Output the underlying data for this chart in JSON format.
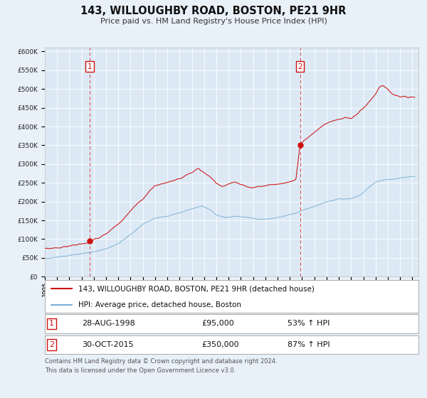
{
  "title": "143, WILLOUGHBY ROAD, BOSTON, PE21 9HR",
  "subtitle": "Price paid vs. HM Land Registry's House Price Index (HPI)",
  "bg_color": "#e8f0f8",
  "plot_bg_color": "#dce9f5",
  "hpi_color": "#7bafd4",
  "price_color": "#cc1111",
  "marker_color": "#cc1111",
  "grid_color": "#ffffff",
  "xmin": 1995.0,
  "xmax": 2025.5,
  "ymin": 0,
  "ymax": 610000,
  "yticks": [
    0,
    50000,
    100000,
    150000,
    200000,
    250000,
    300000,
    350000,
    400000,
    450000,
    500000,
    550000,
    600000
  ],
  "sale1_x": 1998.65,
  "sale1_y": 95000,
  "sale2_x": 2015.83,
  "sale2_y": 350000,
  "legend_line1": "143, WILLOUGHBY ROAD, BOSTON, PE21 9HR (detached house)",
  "legend_line2": "HPI: Average price, detached house, Boston",
  "sale1_date": "28-AUG-1998",
  "sale1_price": "£95,000",
  "sale1_hpi": "53% ↑ HPI",
  "sale2_date": "30-OCT-2015",
  "sale2_price": "£350,000",
  "sale2_hpi": "87% ↑ HPI",
  "footer1": "Contains HM Land Registry data © Crown copyright and database right 2024.",
  "footer2": "This data is licensed under the Open Government Licence v3.0.",
  "hpi_anchors": [
    [
      1995.0,
      47000
    ],
    [
      1996.0,
      52000
    ],
    [
      1997.0,
      56000
    ],
    [
      1998.0,
      60000
    ],
    [
      1999.0,
      65000
    ],
    [
      2000.0,
      72000
    ],
    [
      2001.0,
      86000
    ],
    [
      2002.0,
      110000
    ],
    [
      2003.0,
      138000
    ],
    [
      2004.0,
      155000
    ],
    [
      2005.0,
      160000
    ],
    [
      2006.0,
      168000
    ],
    [
      2007.0,
      178000
    ],
    [
      2007.8,
      185000
    ],
    [
      2008.5,
      175000
    ],
    [
      2009.0,
      162000
    ],
    [
      2009.8,
      155000
    ],
    [
      2010.5,
      158000
    ],
    [
      2011.5,
      155000
    ],
    [
      2012.5,
      150000
    ],
    [
      2013.5,
      152000
    ],
    [
      2014.5,
      158000
    ],
    [
      2015.0,
      163000
    ],
    [
      2015.5,
      168000
    ],
    [
      2016.0,
      175000
    ],
    [
      2017.0,
      185000
    ],
    [
      2018.0,
      198000
    ],
    [
      2019.0,
      205000
    ],
    [
      2020.0,
      205000
    ],
    [
      2020.8,
      215000
    ],
    [
      2021.5,
      235000
    ],
    [
      2022.0,
      248000
    ],
    [
      2022.8,
      255000
    ],
    [
      2023.5,
      255000
    ],
    [
      2024.0,
      258000
    ],
    [
      2024.8,
      262000
    ]
  ],
  "price_anchors": [
    [
      1995.0,
      75000
    ],
    [
      1996.0,
      78000
    ],
    [
      1997.0,
      83000
    ],
    [
      1998.0,
      90000
    ],
    [
      1998.65,
      95000
    ],
    [
      1999.0,
      100000
    ],
    [
      1999.5,
      105000
    ],
    [
      2000.0,
      115000
    ],
    [
      2001.0,
      140000
    ],
    [
      2002.0,
      175000
    ],
    [
      2003.0,
      210000
    ],
    [
      2003.5,
      230000
    ],
    [
      2004.0,
      248000
    ],
    [
      2005.0,
      255000
    ],
    [
      2006.0,
      265000
    ],
    [
      2007.0,
      280000
    ],
    [
      2007.5,
      290000
    ],
    [
      2008.0,
      278000
    ],
    [
      2008.5,
      265000
    ],
    [
      2009.0,
      248000
    ],
    [
      2009.5,
      238000
    ],
    [
      2010.0,
      243000
    ],
    [
      2010.5,
      248000
    ],
    [
      2011.0,
      242000
    ],
    [
      2011.5,
      238000
    ],
    [
      2012.0,
      235000
    ],
    [
      2012.5,
      237000
    ],
    [
      2013.0,
      240000
    ],
    [
      2013.5,
      243000
    ],
    [
      2014.0,
      245000
    ],
    [
      2014.5,
      248000
    ],
    [
      2015.0,
      252000
    ],
    [
      2015.5,
      260000
    ],
    [
      2015.83,
      350000
    ],
    [
      2016.0,
      355000
    ],
    [
      2016.5,
      370000
    ],
    [
      2017.0,
      385000
    ],
    [
      2017.5,
      398000
    ],
    [
      2018.0,
      408000
    ],
    [
      2018.5,
      415000
    ],
    [
      2019.0,
      420000
    ],
    [
      2019.5,
      425000
    ],
    [
      2020.0,
      422000
    ],
    [
      2020.5,
      430000
    ],
    [
      2021.0,
      445000
    ],
    [
      2021.5,
      460000
    ],
    [
      2022.0,
      478000
    ],
    [
      2022.3,
      495000
    ],
    [
      2022.6,
      500000
    ],
    [
      2023.0,
      492000
    ],
    [
      2023.3,
      480000
    ],
    [
      2023.6,
      475000
    ],
    [
      2024.0,
      470000
    ],
    [
      2024.3,
      472000
    ],
    [
      2024.6,
      468000
    ],
    [
      2024.9,
      470000
    ]
  ]
}
